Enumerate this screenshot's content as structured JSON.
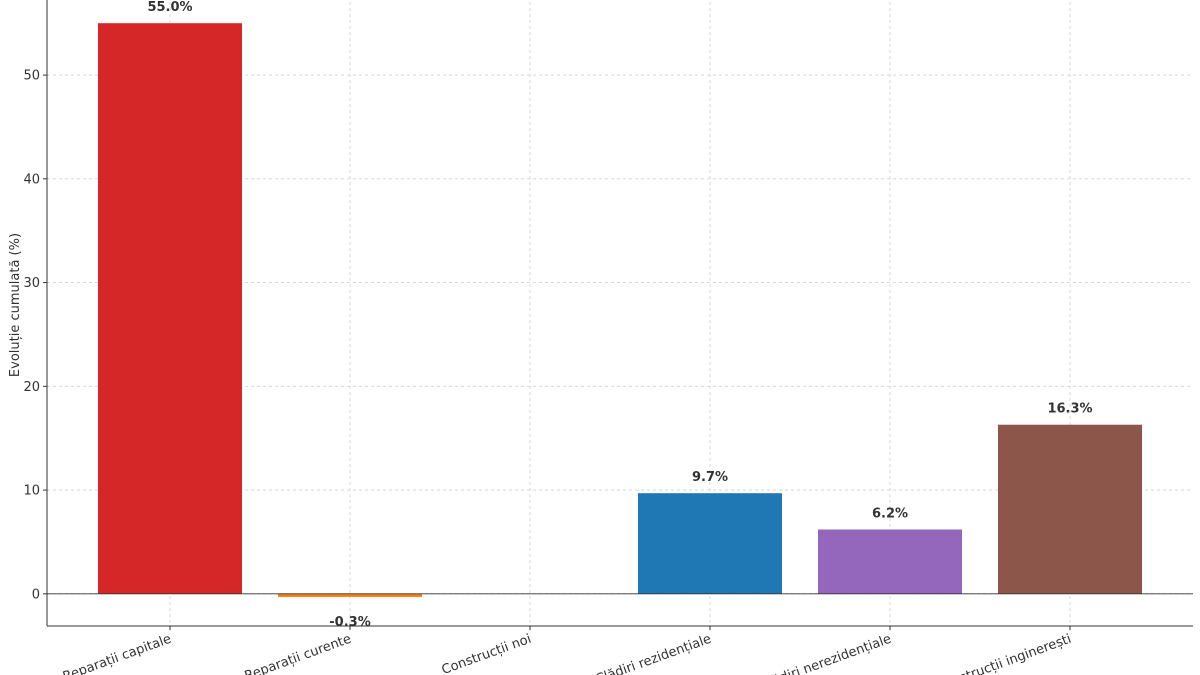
{
  "chart_data": {
    "type": "bar",
    "title": "",
    "xlabel": "",
    "ylabel": "Evoluție cumulată (%)",
    "categories": [
      "Reparații capitale",
      "Reparații curente",
      "Construcții noi",
      "Clădiri rezidențiale",
      "Clădiri nerezidențiale",
      "Construcții inginerești"
    ],
    "values": [
      55.0,
      -0.3,
      0.0,
      9.7,
      6.2,
      16.3
    ],
    "labels": [
      "55.0%",
      "-0.3%",
      "",
      "9.7%",
      "6.2%",
      "16.3%"
    ],
    "colors": [
      "#d62728",
      "#ff7f0e",
      "#2ca02c",
      "#1f77b4",
      "#9467bd",
      "#8c564b"
    ],
    "yticks": [
      0,
      10,
      20,
      30,
      40,
      50
    ],
    "ylim": [
      -3.1,
      58.2
    ],
    "grid": true,
    "xtick_rotation_deg": -20
  }
}
